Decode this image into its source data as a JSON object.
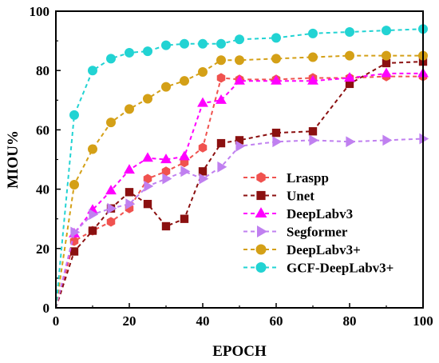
{
  "chart_data": {
    "type": "line",
    "title": "",
    "xlabel": "EPOCH",
    "ylabel": "MIOU%",
    "xlim": [
      0,
      100
    ],
    "ylim": [
      0,
      100
    ],
    "xticks": [
      0,
      20,
      40,
      60,
      80,
      100
    ],
    "yticks": [
      0,
      20,
      40,
      60,
      80,
      100
    ],
    "grid": false,
    "legend_position": "bottom-right",
    "series": [
      {
        "name": "Lraspp",
        "color": "#f0524f",
        "marker": "hexagon",
        "x": [
          0,
          5,
          10,
          15,
          20,
          25,
          30,
          35,
          40,
          45,
          50,
          60,
          70,
          80,
          90,
          100
        ],
        "y": [
          0,
          22.5,
          26,
          29,
          33.5,
          43.5,
          46,
          49,
          54,
          77.5,
          77,
          77,
          77.5,
          77.5,
          78,
          78
        ]
      },
      {
        "name": "Unet",
        "color": "#8b1010",
        "marker": "square",
        "x": [
          0,
          5,
          10,
          15,
          20,
          25,
          30,
          35,
          40,
          45,
          50,
          60,
          70,
          80,
          90,
          100
        ],
        "y": [
          0,
          19,
          26,
          33.5,
          39,
          35,
          27.5,
          30,
          46,
          55.5,
          56.5,
          59,
          59.5,
          75.5,
          82.5,
          83
        ]
      },
      {
        "name": "DeepLabv3",
        "color": "#ff00ff",
        "marker": "triangle-up",
        "x": [
          0,
          5,
          10,
          15,
          20,
          25,
          30,
          35,
          40,
          45,
          50,
          60,
          70,
          80,
          90,
          100
        ],
        "y": [
          0,
          25,
          33,
          39.5,
          46.5,
          50.5,
          50,
          51,
          69,
          70,
          76.5,
          76.5,
          76.5,
          77.5,
          79,
          79
        ]
      },
      {
        "name": "Segformer",
        "color": "#c080f0",
        "marker": "triangle-right",
        "x": [
          0,
          5,
          10,
          15,
          20,
          25,
          30,
          35,
          40,
          45,
          50,
          60,
          70,
          80,
          90,
          100
        ],
        "y": [
          0,
          25.5,
          31.5,
          33.5,
          35,
          41,
          43.5,
          46,
          43.5,
          47.5,
          54.5,
          56,
          56.5,
          56,
          56.5,
          57
        ]
      },
      {
        "name": "DeepLabv3+",
        "color": "#d4a017",
        "marker": "circle",
        "x": [
          0,
          5,
          10,
          15,
          20,
          25,
          30,
          35,
          40,
          45,
          50,
          60,
          70,
          80,
          90,
          100
        ],
        "y": [
          0,
          41.5,
          53.5,
          62.5,
          67,
          70.5,
          74.5,
          76.5,
          79.5,
          83.5,
          83.5,
          84,
          84.5,
          85,
          85,
          85
        ]
      },
      {
        "name": "GCF-DeepLabv3+",
        "color": "#22d3d3",
        "marker": "circle",
        "x": [
          0,
          5,
          10,
          15,
          20,
          25,
          30,
          35,
          40,
          45,
          50,
          60,
          70,
          80,
          90,
          100
        ],
        "y": [
          0,
          65,
          80,
          84,
          86,
          86.5,
          88.5,
          89,
          89,
          89,
          90.5,
          91,
          92.5,
          93,
          93.5,
          94
        ]
      }
    ]
  }
}
